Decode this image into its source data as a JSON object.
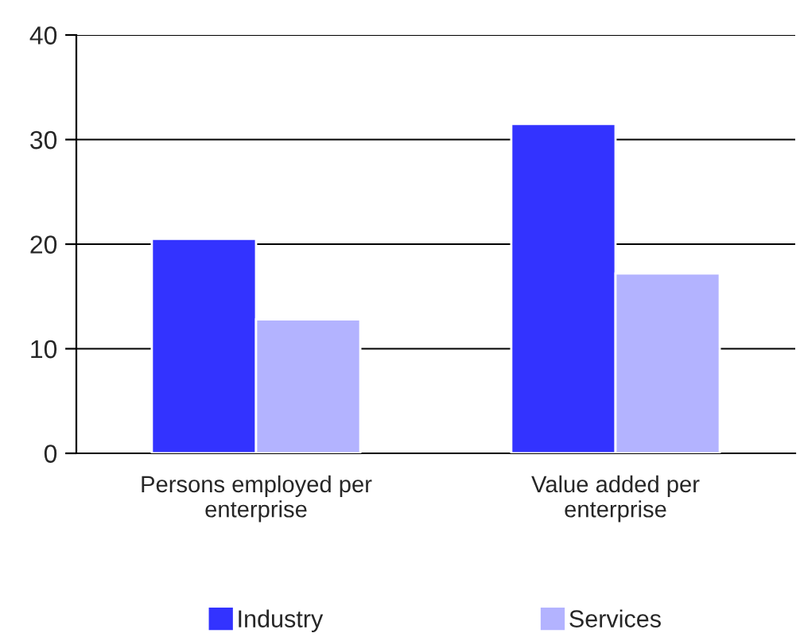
{
  "chart_data": {
    "type": "bar",
    "categories": [
      "Persons employed per\nenterprise",
      "Value added per\nenterprise"
    ],
    "series": [
      {
        "name": "Industry",
        "color": "#3333ff",
        "values": [
          20.5,
          31.5
        ]
      },
      {
        "name": "Services",
        "color": "#b3b3ff",
        "values": [
          12.8,
          17.2
        ]
      }
    ],
    "ylim": [
      0,
      40
    ],
    "yticks": [
      0,
      10,
      20,
      30,
      40
    ],
    "grid": "y",
    "legend": "bottom"
  }
}
